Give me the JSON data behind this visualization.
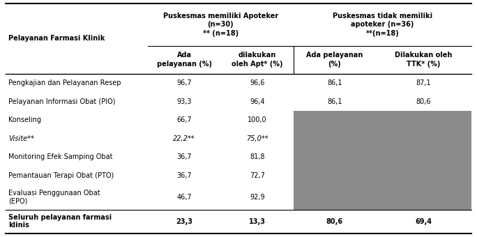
{
  "title_left": "Puskesmas memiliki Apoteker\n(n=30)\n** (n=18)",
  "title_right": "Puskesmas tidak memiliki\napoteker (n=36)\n**(n=18)",
  "col_label_header": "Pelayanan Farmasi Klinik",
  "col_headers": [
    "Ada\npelayanan (%)",
    "dilakukan\noleh Apt* (%)",
    "Ada pelayanan\n(%)",
    "Dilakukan oleh\nTTK* (%)"
  ],
  "rows": [
    {
      "label": "Pengkajian dan Pelayanan Resep",
      "vals": [
        "96,7",
        "96,6",
        "86,1",
        "87,1"
      ],
      "italic": false,
      "two_line": false
    },
    {
      "label": "Pelayanan Informasi Obat (PIO)",
      "vals": [
        "93,3",
        "96,4",
        "86,1",
        "80,6"
      ],
      "italic": false,
      "two_line": false
    },
    {
      "label": "Konseling",
      "vals": [
        "66,7",
        "100,0",
        "",
        ""
      ],
      "italic": false,
      "two_line": false
    },
    {
      "label": "Visite**",
      "vals": [
        "22,2**",
        "75,0**",
        "",
        ""
      ],
      "italic": true,
      "two_line": false
    },
    {
      "label": "Monitoring Efek Samping Obat",
      "vals": [
        "36,7",
        "81,8",
        "",
        ""
      ],
      "italic": false,
      "two_line": false
    },
    {
      "label": "Pemantauan Terapi Obat (PTO)",
      "vals": [
        "36,7",
        "72,7",
        "",
        ""
      ],
      "italic": false,
      "two_line": false
    },
    {
      "label": "Evaluasi Penggunaan Obat\n(EPO)",
      "vals": [
        "46,7",
        "92,9",
        "",
        ""
      ],
      "italic": false,
      "two_line": true
    }
  ],
  "footer": {
    "label": "Seluruh pelayanan farmasi\nklinis",
    "vals": [
      "23,3",
      "13,3",
      "80,6",
      "69,4"
    ]
  },
  "gray_color": "#8c8c8c",
  "bg_color": "#ffffff",
  "font_size": 7.0,
  "header_font_size": 7.0,
  "col_splits": [
    0.0,
    0.305,
    0.462,
    0.618,
    0.795,
    1.0
  ]
}
